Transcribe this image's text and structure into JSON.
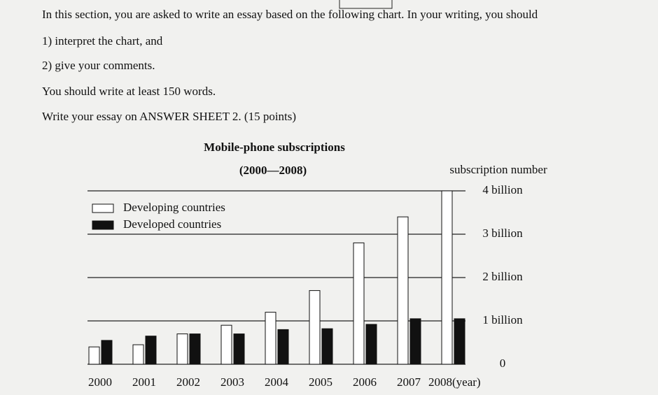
{
  "document": {
    "paragraphs": [
      "In this section, you are asked to write an essay based on the following chart. In your writing, you should",
      "1) interpret the chart, and",
      "2) give your comments.",
      "You should write at least 150 words.",
      "Write your essay on ANSWER SHEET 2. (15 points)"
    ]
  },
  "chart_data": {
    "type": "bar",
    "title": "Mobile-phone subscriptions",
    "subtitle": "(2000—2008)",
    "y_label": "subscription number",
    "categories": [
      "2000",
      "2001",
      "2002",
      "2003",
      "2004",
      "2005",
      "2006",
      "2007",
      "2008(year)"
    ],
    "series": [
      {
        "name": "Developing countries",
        "color": "#ffffff",
        "values": [
          0.4,
          0.45,
          0.7,
          0.9,
          1.2,
          1.7,
          2.8,
          3.4,
          4.0
        ]
      },
      {
        "name": "Developed countries",
        "color": "#111111",
        "values": [
          0.55,
          0.65,
          0.7,
          0.7,
          0.8,
          0.82,
          0.92,
          1.05,
          1.05
        ]
      }
    ],
    "ylim": [
      0,
      4
    ],
    "yticks": [
      0,
      {
        "value": 1,
        "label": "1 billion"
      },
      {
        "value": 2,
        "label": "2 billion"
      },
      {
        "value": 3,
        "label": "3 billion"
      },
      {
        "value": 4,
        "label": "4 billion"
      }
    ],
    "grid": true,
    "legend": "upper left"
  }
}
